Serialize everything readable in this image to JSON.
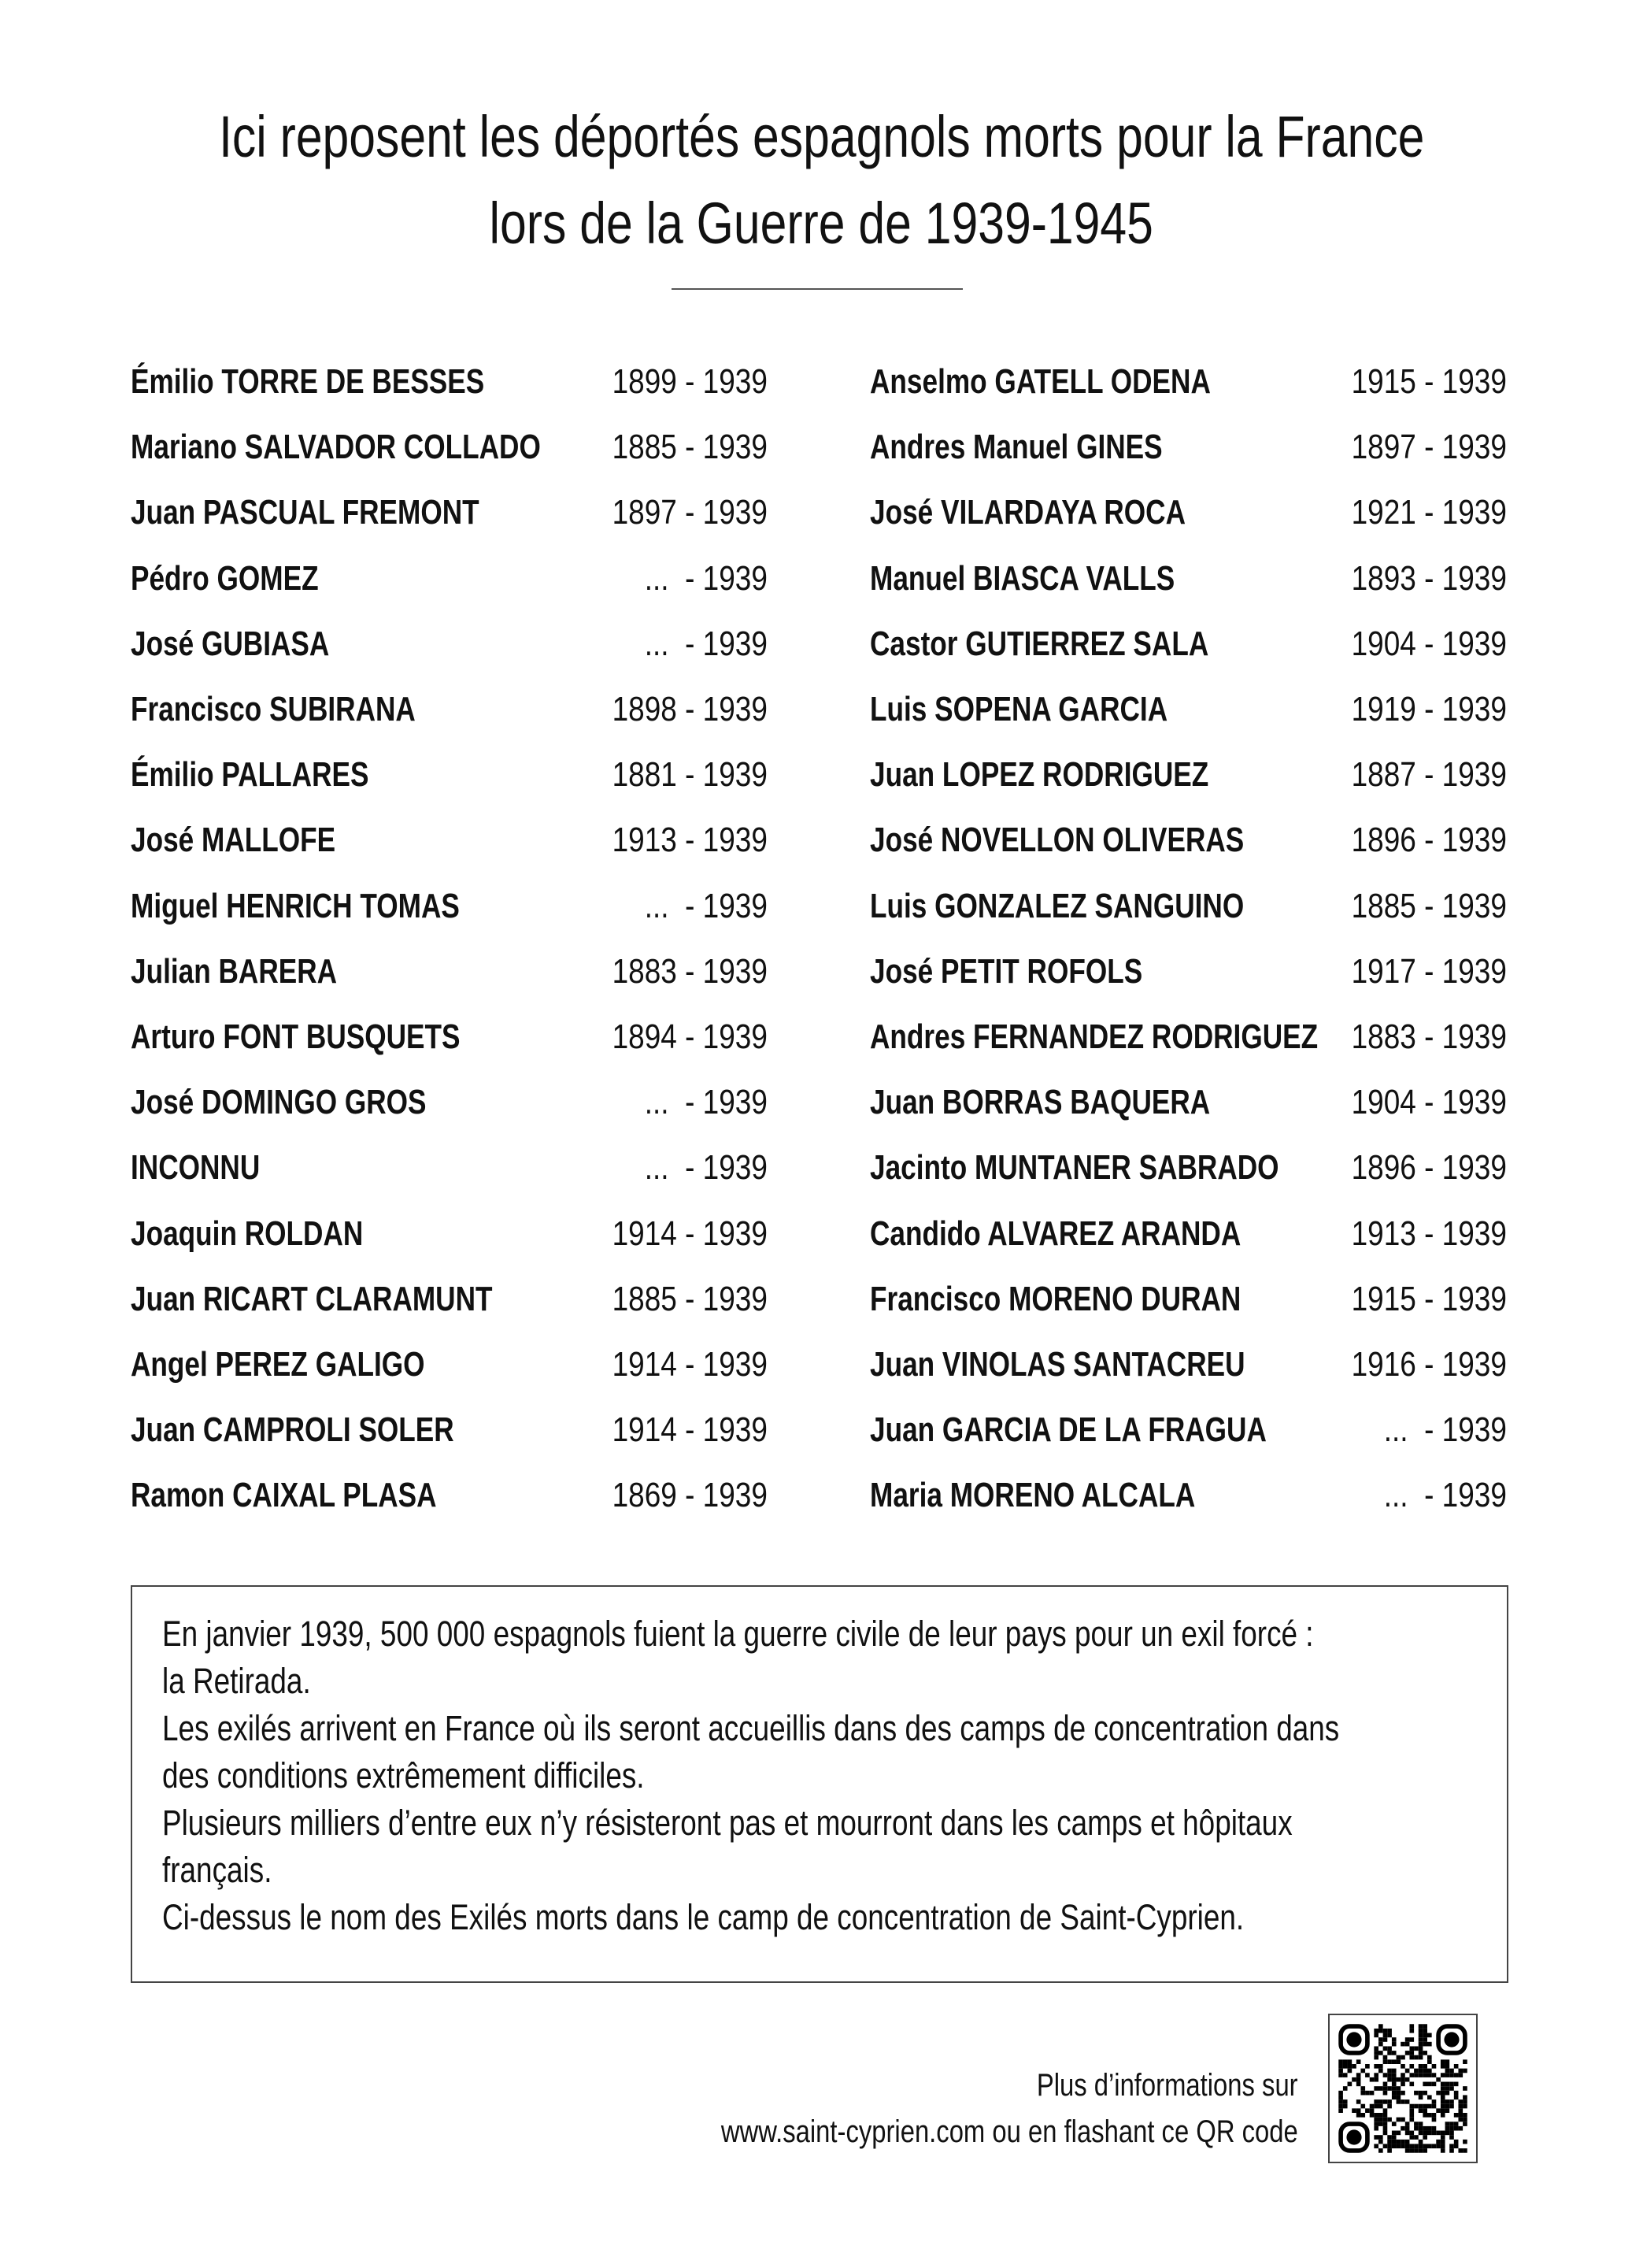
{
  "title": {
    "line1": "Ici reposent les déportés espagnols morts pour la France",
    "line2": "lors de la Guerre de 1939-1945"
  },
  "left_column": [
    {
      "name": "Émilio TORRE DE BESSES",
      "dates": "1899 - 1939"
    },
    {
      "name": "Mariano SALVADOR COLLADO",
      "dates": "1885 - 1939"
    },
    {
      "name": "Juan PASCUAL FREMONT",
      "dates": "1897 - 1939"
    },
    {
      "name": "Pédro GOMEZ",
      "dates": "...  - 1939"
    },
    {
      "name": "José GUBIASA",
      "dates": "...  - 1939"
    },
    {
      "name": "Francisco SUBIRANA",
      "dates": "1898 - 1939"
    },
    {
      "name": "Émilio PALLARES",
      "dates": "1881 - 1939"
    },
    {
      "name": "José MALLOFE",
      "dates": "1913 - 1939"
    },
    {
      "name": "Miguel HENRICH TOMAS",
      "dates": "...  - 1939"
    },
    {
      "name": "Julian BARERA",
      "dates": "1883 - 1939"
    },
    {
      "name": "Arturo FONT BUSQUETS",
      "dates": "1894 - 1939"
    },
    {
      "name": "José DOMINGO GROS",
      "dates": "...  - 1939"
    },
    {
      "name": "INCONNU",
      "dates": "...  - 1939"
    },
    {
      "name": "Joaquin ROLDAN",
      "dates": "1914 - 1939"
    },
    {
      "name": "Juan RICART CLARAMUNT",
      "dates": "1885 - 1939"
    },
    {
      "name": "Angel PEREZ GALIGO",
      "dates": "1914 - 1939"
    },
    {
      "name": "Juan CAMPROLI SOLER",
      "dates": "1914 - 1939"
    },
    {
      "name": "Ramon CAIXAL PLASA",
      "dates": "1869 - 1939"
    }
  ],
  "right_column": [
    {
      "name": "Anselmo GATELL ODENA",
      "dates": "1915 - 1939"
    },
    {
      "name": "Andres Manuel GINES",
      "dates": "1897 - 1939"
    },
    {
      "name": "José VILARDAYA ROCA",
      "dates": "1921 - 1939"
    },
    {
      "name": "Manuel BIASCA VALLS",
      "dates": "1893 - 1939"
    },
    {
      "name": "Castor GUTIERREZ SALA",
      "dates": "1904 - 1939"
    },
    {
      "name": "Luis SOPENA GARCIA",
      "dates": "1919 - 1939"
    },
    {
      "name": "Juan LOPEZ RODRIGUEZ",
      "dates": "1887 - 1939"
    },
    {
      "name": "José NOVELLON OLIVERAS",
      "dates": "1896 - 1939"
    },
    {
      "name": "Luis GONZALEZ SANGUINO",
      "dates": "1885 - 1939"
    },
    {
      "name": "José PETIT ROFOLS",
      "dates": "1917 - 1939"
    },
    {
      "name": "Andres FERNANDEZ RODRIGUEZ",
      "dates": "1883 - 1939"
    },
    {
      "name": "Juan BORRAS BAQUERA",
      "dates": "1904 - 1939"
    },
    {
      "name": "Jacinto MUNTANER SABRADO",
      "dates": "1896 - 1939"
    },
    {
      "name": "Candido ALVAREZ ARANDA",
      "dates": "1913 - 1939"
    },
    {
      "name": "Francisco MORENO DURAN",
      "dates": "1915 - 1939"
    },
    {
      "name": "Juan VINOLAS SANTACREU",
      "dates": "1916 - 1939"
    },
    {
      "name": "Juan GARCIA DE LA FRAGUA",
      "dates": "...  - 1939"
    },
    {
      "name": "Maria MORENO ALCALA",
      "dates": "...  - 1939"
    }
  ],
  "info_box": {
    "lines": [
      "En janvier 1939, 500 000 espagnols fuient la guerre civile de leur pays pour un exil forcé :",
      "la Retirada.",
      "Les exilés arrivent en France où ils seront accueillis dans des camps de concentration dans",
      "des conditions extrêmement difficiles.",
      "Plusieurs milliers d’entre eux n’y résisteront pas et mourront dans les camps et hôpitaux",
      "français.",
      "Ci-dessus le nom des Exilés morts dans le camp de concentration de Saint-Cyprien."
    ]
  },
  "footer": {
    "line1": "Plus d’informations sur",
    "line2": "www.saint-cyprien.com ou en flashant ce QR code",
    "qr_icon": "qr-code-icon"
  }
}
